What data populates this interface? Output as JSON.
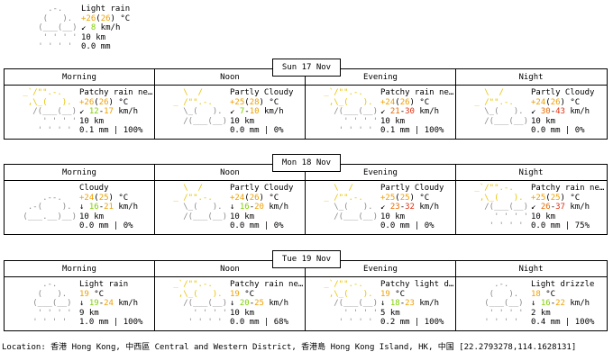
{
  "current": {
    "icon_name": "light-rain-icon",
    "icon_lines": [
      "     .-.   ",
      "    (   ).  ",
      "   (___(__) ",
      "    ' ' ' ' ",
      "   ' ' ' '  "
    ],
    "condition": "Light rain",
    "temp": "+26",
    "feels": "26",
    "temp_unit": " °C",
    "wind_arrow": "↙",
    "wind": "8",
    "wind_unit": " km/h",
    "visibility": "10 km",
    "precip": "0.0 mm"
  },
  "days": [
    {
      "date": "Sun 17 Nov",
      "slots": [
        {
          "label": "Morning",
          "icon_name": "patchy-rain-icon",
          "icon_lines": [
            " _`/\"\".-.    ",
            "  ,\\_(   ).  ",
            "   /(___(__) ",
            "     ' ' ' ' ",
            "    ' ' ' '  "
          ],
          "condition": "Patchy rain ne…",
          "temp": "+26",
          "feels": "26",
          "temp_unit": " °C",
          "wind_arrow": "↙",
          "wind_low": "12",
          "wind_high": "17",
          "wind_unit": " km/h",
          "visibility": "10 km",
          "precip": "0.1 mm | 100%"
        },
        {
          "label": "Noon",
          "icon_name": "partly-cloudy-icon",
          "icon_lines": [
            "   \\  /      ",
            " _ /\"\".-.    ",
            "   \\_(   ).  ",
            "   /(___(__) ",
            "             "
          ],
          "condition": "Partly Cloudy",
          "temp": "+25",
          "feels": "28",
          "temp_unit": " °C",
          "wind_arrow": "↙",
          "wind_low": "7",
          "wind_high": "10",
          "wind_unit": " km/h",
          "visibility": "10 km",
          "precip": "0.0 mm | 0%"
        },
        {
          "label": "Evening",
          "icon_name": "patchy-rain-icon",
          "icon_lines": [
            " _`/\"\".-.    ",
            "  ,\\_(   ).  ",
            "   /(___(__) ",
            "     ' ' ' ' ",
            "    ' ' ' '  "
          ],
          "condition": "Patchy rain ne…",
          "temp": "+24",
          "feels": "26",
          "temp_unit": " °C",
          "wind_arrow": "↙",
          "wind_low": "21",
          "wind_high": "30",
          "wind_unit": " km/h",
          "visibility": "10 km",
          "precip": "0.1 mm | 100%"
        },
        {
          "label": "Night",
          "icon_name": "partly-cloudy-icon",
          "icon_lines": [
            "   \\  /      ",
            " _ /\"\".-.    ",
            "   \\_(   ).  ",
            "   /(___(__) ",
            "             "
          ],
          "condition": "Partly Cloudy",
          "temp": "+24",
          "feels": "26",
          "temp_unit": " °C",
          "wind_arrow": "↙",
          "wind_low": "30",
          "wind_high": "43",
          "wind_unit": " km/h",
          "visibility": "10 km",
          "precip": "0.0 mm | 0%"
        }
      ]
    },
    {
      "date": "Mon 18 Nov",
      "slots": [
        {
          "label": "Morning",
          "icon_name": "cloudy-icon",
          "icon_lines": [
            "             ",
            "     .--.    ",
            "  .-(    ).  ",
            " (___.__)__) ",
            "             "
          ],
          "condition": "Cloudy",
          "temp": "+24",
          "feels": "25",
          "temp_unit": " °C",
          "wind_arrow": "↓",
          "wind_low": "16",
          "wind_high": "21",
          "wind_unit": " km/h",
          "visibility": "10 km",
          "precip": "0.0 mm | 0%"
        },
        {
          "label": "Noon",
          "icon_name": "partly-cloudy-icon",
          "icon_lines": [
            "   \\  /      ",
            " _ /\"\".-.    ",
            "   \\_(   ).  ",
            "   /(___(__) ",
            "             "
          ],
          "condition": "Partly Cloudy",
          "temp": "+24",
          "feels": "26",
          "temp_unit": " °C",
          "wind_arrow": "↓",
          "wind_low": "16",
          "wind_high": "20",
          "wind_unit": " km/h",
          "visibility": "10 km",
          "precip": "0.0 mm | 0%"
        },
        {
          "label": "Evening",
          "icon_name": "partly-cloudy-icon",
          "icon_lines": [
            "   \\  /      ",
            " _ /\"\".-.    ",
            "   \\_(   ).  ",
            "   /(___(__) ",
            "             "
          ],
          "condition": "Partly Cloudy",
          "temp": "+25",
          "feels": "25",
          "temp_unit": " °C",
          "wind_arrow": "↙",
          "wind_low": "23",
          "wind_high": "32",
          "wind_unit": " km/h",
          "visibility": "10 km",
          "precip": "0.0 mm | 0%"
        },
        {
          "label": "Night",
          "icon_name": "patchy-rain-icon",
          "icon_lines": [
            " _`/\"\".-.    ",
            "  ,\\_(   ).  ",
            "   /(___(__) ",
            "     ' ' ' ' ",
            "    ' ' ' '  "
          ],
          "condition": "Patchy rain ne…",
          "temp": "+25",
          "feels": "25",
          "temp_unit": " °C",
          "wind_arrow": "↙",
          "wind_low": "26",
          "wind_high": "37",
          "wind_unit": " km/h",
          "visibility": "10 km",
          "precip": "0.0 mm | 75%"
        }
      ]
    },
    {
      "date": "Tue 19 Nov",
      "slots": [
        {
          "label": "Morning",
          "icon_name": "light-rain-icon",
          "icon_lines": [
            "     .-.     ",
            "    (   ).   ",
            "   (___(__)  ",
            "    ' ' ' '  ",
            "   ' ' ' '   "
          ],
          "condition": "Light rain",
          "temp": "19",
          "feels": "",
          "temp_unit": " °C",
          "wind_arrow": "↓",
          "wind_low": "19",
          "wind_high": "24",
          "wind_unit": " km/h",
          "visibility": "9 km",
          "precip": "1.0 mm | 100%"
        },
        {
          "label": "Noon",
          "icon_name": "patchy-rain-icon",
          "icon_lines": [
            " _`/\"\".-.    ",
            "  ,\\_(   ).  ",
            "   /(___(__) ",
            "     ' ' ' ' ",
            "    ' ' ' '  "
          ],
          "condition": "Patchy rain ne…",
          "temp": "19",
          "feels": "",
          "temp_unit": " °C",
          "wind_arrow": "↓",
          "wind_low": "20",
          "wind_high": "25",
          "wind_unit": " km/h",
          "visibility": "10 km",
          "precip": "0.0 mm | 68%"
        },
        {
          "label": "Evening",
          "icon_name": "patchy-light-drizzle-icon",
          "icon_lines": [
            " _`/\"\".-.    ",
            "  ,\\_(   ).  ",
            "   /(___(__) ",
            "     ' ' ' ' ",
            "    ' ' ' '  "
          ],
          "condition": "Patchy light d…",
          "temp": "19",
          "feels": "",
          "temp_unit": " °C",
          "wind_arrow": "↓",
          "wind_low": "18",
          "wind_high": "23",
          "wind_unit": " km/h",
          "visibility": "5 km",
          "precip": "0.2 mm | 100%"
        },
        {
          "label": "Night",
          "icon_name": "light-drizzle-icon",
          "icon_lines": [
            "     .-.     ",
            "    (   ).   ",
            "   (___(__)  ",
            "    ' ' ' '  ",
            "   ' ' ' '   "
          ],
          "condition": "Light drizzle",
          "temp": "18",
          "feels": "",
          "temp_unit": " °C",
          "wind_arrow": "↓",
          "wind_low": "16",
          "wind_high": "22",
          "wind_unit": " km/h",
          "visibility": "2 km",
          "precip": "0.4 mm | 100%"
        }
      ]
    }
  ],
  "location": "Location: 香港 Hong Kong, 中西區 Central and Western District, 香港島 Hong Kong Island, HK, 中国 [22.2793278,114.1628131]",
  "colors": {
    "icon_gray": "#8a8a8a",
    "sun_yellow": "#e8c400",
    "temp_orange": "#f0a000",
    "wind_green": "#7fd000",
    "wind_red": "#e03010"
  }
}
